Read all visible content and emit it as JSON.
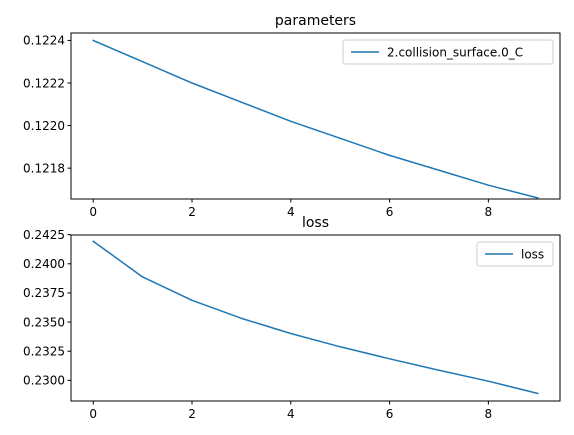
{
  "chart_data": [
    {
      "type": "line",
      "title": "parameters",
      "xlabel": "",
      "ylabel": "",
      "xlim": [
        -0.45,
        9.45
      ],
      "ylim": [
        0.121655,
        0.122435
      ],
      "xticks": [
        0,
        2,
        4,
        6,
        8
      ],
      "xtick_labels": [
        "0",
        "2",
        "4",
        "6",
        "8"
      ],
      "yticks": [
        0.1218,
        0.122,
        0.1222,
        0.1224
      ],
      "ytick_labels": [
        "0.1218",
        "0.1220",
        "0.1222",
        "0.1224"
      ],
      "grid": false,
      "legend_position": "top-right",
      "series": [
        {
          "name": "2.collision_surface.0_C",
          "color": "#1f77b4",
          "x": [
            0,
            1,
            2,
            3,
            4,
            5,
            6,
            7,
            8,
            9
          ],
          "values": [
            0.1224,
            0.1223,
            0.1222,
            0.12211,
            0.12202,
            0.12194,
            0.12186,
            0.12179,
            0.12172,
            0.12166
          ]
        }
      ]
    },
    {
      "type": "line",
      "title": "loss",
      "xlabel": "",
      "ylabel": "",
      "xlim": [
        -0.45,
        9.45
      ],
      "ylim": [
        0.22823,
        0.24247
      ],
      "xticks": [
        0,
        2,
        4,
        6,
        8
      ],
      "xtick_labels": [
        "0",
        "2",
        "4",
        "6",
        "8"
      ],
      "yticks": [
        0.23,
        0.2325,
        0.235,
        0.2375,
        0.24,
        0.2425
      ],
      "ytick_labels": [
        "0.2300",
        "0.2325",
        "0.2350",
        "0.2375",
        "0.2400",
        "0.2425"
      ],
      "grid": false,
      "legend_position": "top-right",
      "series": [
        {
          "name": "loss",
          "color": "#1f77b4",
          "x": [
            0,
            1,
            2,
            3,
            4,
            5,
            6,
            7,
            8,
            9
          ],
          "values": [
            0.24193,
            0.23887,
            0.23687,
            0.23532,
            0.23402,
            0.23288,
            0.23185,
            0.23087,
            0.22993,
            0.22888
          ]
        }
      ]
    }
  ]
}
